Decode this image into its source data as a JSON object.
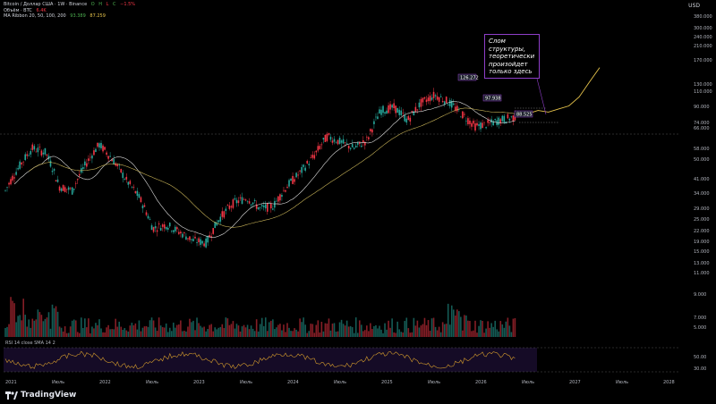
{
  "header": {
    "symbol_line": "Bitcoin / Доллар США · 1W · Binance",
    "ohlc": [
      "O",
      "H",
      "L",
      "C",
      "−1.5%"
    ],
    "volume_label": "Объём · BTC",
    "volume_val": "6.4K",
    "ma_label": "MA Ribbon 20, 50, 100, 200",
    "ma_vals": [
      "93.389",
      "87.259"
    ]
  },
  "toolbar": {
    "currency": "USD"
  },
  "annotation": {
    "text": "Слом структуры, теоретически произойдет только здесь",
    "border_color": "#8e3ec8"
  },
  "callouts": [
    "126.272",
    "97.938",
    "88.525"
  ],
  "watermark": "TradingView",
  "colors": {
    "up": "#26a69a",
    "down": "#f23645",
    "projection": "#e6c34b",
    "ma_fast": "#e0e0e0",
    "ma_slow": "#c9b458",
    "rsi": "#d39b2c",
    "rsi_band": "#3b1f6e"
  },
  "chart_data": {
    "type": "line",
    "x_labels": [
      "2021",
      "Июль",
      "2022",
      "Июль",
      "2023",
      "Июль",
      "2024",
      "Июль",
      "2025",
      "Июль",
      "2026",
      "Июль",
      "2027",
      "Июль",
      "2028"
    ],
    "y_labels": [
      "380.000",
      "300.000",
      "240.000",
      "210.000",
      "170.000",
      "130.000",
      "110.000",
      "90.000",
      "74.000",
      "66.000",
      "58.000",
      "50.000",
      "41.000",
      "34.000",
      "29.000",
      "25.000",
      "22.000",
      "19.000",
      "15.000",
      "13.000",
      "11.000",
      "9.000",
      "7.000",
      "5.000"
    ],
    "price_close": [
      33000,
      45000,
      58000,
      55000,
      35000,
      33000,
      47000,
      61000,
      50000,
      38000,
      30000,
      20000,
      21000,
      19000,
      17000,
      16500,
      23000,
      28000,
      30000,
      26000,
      27000,
      35000,
      42000,
      52000,
      68000,
      63000,
      58000,
      65000,
      96000,
      100000,
      84000,
      106000,
      118000,
      108000,
      92000,
      78000,
      80000,
      85000,
      88000
    ],
    "projection": [
      88000,
      92000,
      96000,
      94000,
      98000,
      102000,
      115000,
      140000,
      170000
    ],
    "rsi_levels": [
      "50.00",
      "30.00"
    ],
    "indicator_label": "RSI 14 close SMA 14 2"
  }
}
